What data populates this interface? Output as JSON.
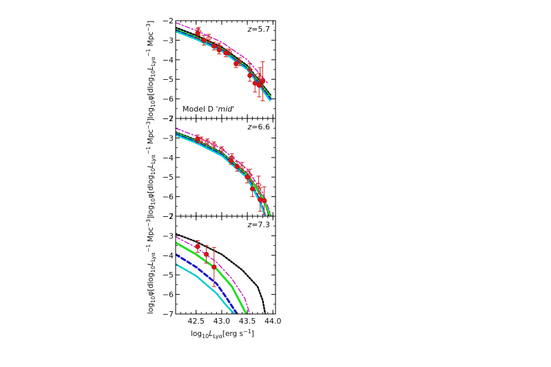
{
  "figure": {
    "xlabel": "log10Lya[erg s-1]",
    "xlabel_parts": {
      "main": "log",
      "sub1": "10",
      "mid": "L",
      "sub2": "Lyα",
      "tail": "[erg s",
      "sup": "−1",
      "end": "]"
    },
    "ylabel_parts": {
      "a": "log",
      "b": "10",
      "c": "φ[dlog",
      "d": "10",
      "e": "L",
      "f": "Lyα",
      "g": " Mpc",
      "h": "−3",
      "i": "]",
      "supm1": "−1"
    },
    "model_label_prefix": "Model D ",
    "model_label_italic": "'mid'"
  },
  "chart_data": [
    {
      "type": "line",
      "panel": "top",
      "annotation": "z=5.7",
      "xlim": [
        42.1,
        44.05
      ],
      "ylim": [
        -7,
        -2
      ],
      "xticks": [
        42.5,
        43.0,
        43.5,
        44.0
      ],
      "yticks": [
        -2,
        -3,
        -4,
        -5,
        -6,
        -7
      ],
      "series": [
        {
          "style": "dash-dot-purple",
          "color": "#c000c0",
          "x": [
            42.1,
            42.5,
            43.0,
            43.5,
            43.9
          ],
          "y": [
            -2.1,
            -2.5,
            -3.1,
            -4.0,
            -5.2
          ]
        },
        {
          "style": "dotted-black",
          "color": "#000000",
          "x": [
            42.1,
            42.5,
            43.0,
            43.5,
            43.95
          ],
          "y": [
            -2.35,
            -2.75,
            -3.35,
            -4.3,
            -5.8
          ]
        },
        {
          "style": "solid-green",
          "color": "#22dd22",
          "x": [
            42.1,
            42.5,
            43.0,
            43.5,
            43.95
          ],
          "y": [
            -2.45,
            -2.85,
            -3.45,
            -4.4,
            -5.9
          ]
        },
        {
          "style": "dashed-blue",
          "color": "#1010cc",
          "x": [
            42.1,
            42.5,
            43.0,
            43.5,
            43.95
          ],
          "y": [
            -2.5,
            -2.9,
            -3.5,
            -4.45,
            -6.0
          ]
        },
        {
          "style": "dotdash-cyan",
          "color": "#00cccc",
          "x": [
            42.1,
            42.5,
            43.0,
            43.5,
            43.95
          ],
          "y": [
            -2.55,
            -2.95,
            -3.55,
            -4.5,
            -6.1
          ]
        }
      ],
      "points_filled": [
        {
          "x": 42.53,
          "y": -2.65,
          "err": 0.25
        },
        {
          "x": 42.65,
          "y": -3.0,
          "err": 0.25
        },
        {
          "x": 42.85,
          "y": -3.3,
          "err": 0.2
        },
        {
          "x": 42.95,
          "y": -3.5,
          "err": 0.2
        },
        {
          "x": 43.08,
          "y": -3.65,
          "err": 0.2
        },
        {
          "x": 43.28,
          "y": -4.2,
          "err": 0.2
        },
        {
          "x": 43.55,
          "y": -4.8,
          "err": 0.3
        },
        {
          "x": 43.65,
          "y": -5.2,
          "err": 0.45
        },
        {
          "x": 43.73,
          "y": -5.3,
          "err": 0.6
        },
        {
          "x": 43.8,
          "y": -5.1,
          "err": 1.0
        }
      ],
      "points_open": [
        {
          "x": 42.55,
          "y": -2.55,
          "err": 0.2
        },
        {
          "x": 42.75,
          "y": -2.9,
          "err": 0.2
        },
        {
          "x": 42.95,
          "y": -3.3,
          "err": 0.15
        },
        {
          "x": 43.15,
          "y": -3.6,
          "err": 0.15
        },
        {
          "x": 43.35,
          "y": -4.1,
          "err": 0.2
        },
        {
          "x": 43.55,
          "y": -4.5,
          "err": 0.3
        },
        {
          "x": 43.75,
          "y": -4.9,
          "err": 0.5
        }
      ]
    },
    {
      "type": "line",
      "panel": "middle",
      "annotation": "z=6.6",
      "xlim": [
        42.1,
        44.05
      ],
      "ylim": [
        -7,
        -2
      ],
      "xticks": [
        42.5,
        43.0,
        43.5,
        44.0
      ],
      "yticks": [
        -2,
        -3,
        -4,
        -5,
        -6,
        -7
      ],
      "series": [
        {
          "style": "dash-dot-purple",
          "color": "#c000c0",
          "x": [
            42.1,
            42.5,
            43.0,
            43.5,
            43.8,
            43.97
          ],
          "y": [
            -2.5,
            -2.9,
            -3.55,
            -4.6,
            -5.8,
            -7.0
          ]
        },
        {
          "style": "dotted-black",
          "color": "#000000",
          "x": [
            42.1,
            42.5,
            43.0,
            43.5,
            43.8,
            43.93
          ],
          "y": [
            -2.7,
            -3.1,
            -3.75,
            -4.85,
            -6.0,
            -7.0
          ]
        },
        {
          "style": "solid-green",
          "color": "#22dd22",
          "x": [
            42.1,
            42.5,
            43.0,
            43.5,
            43.8,
            43.95
          ],
          "y": [
            -2.75,
            -3.15,
            -3.8,
            -4.9,
            -6.05,
            -7.0
          ]
        },
        {
          "style": "dashed-blue",
          "color": "#1010cc",
          "x": [
            42.1,
            42.5,
            43.0,
            43.5,
            43.75,
            43.85
          ],
          "y": [
            -2.8,
            -3.2,
            -3.85,
            -5.0,
            -6.2,
            -7.0
          ]
        },
        {
          "style": "dotdash-cyan",
          "color": "#00cccc",
          "x": [
            42.1,
            42.5,
            43.0,
            43.5,
            43.75,
            43.85
          ],
          "y": [
            -2.85,
            -3.25,
            -3.9,
            -5.05,
            -6.3,
            -7.0
          ]
        }
      ],
      "points_filled": [
        {
          "x": 42.53,
          "y": -3.05,
          "err": 0.2
        },
        {
          "x": 43.18,
          "y": -4.15,
          "err": 0.2
        },
        {
          "x": 43.3,
          "y": -4.45,
          "err": 0.25
        },
        {
          "x": 43.5,
          "y": -5.0,
          "err": 0.3
        },
        {
          "x": 43.6,
          "y": -5.6,
          "err": 0.4
        },
        {
          "x": 43.75,
          "y": -6.15,
          "err": 0.6
        },
        {
          "x": 43.83,
          "y": -6.2,
          "err": 0.7
        }
      ],
      "points_open": [
        {
          "x": 42.6,
          "y": -3.1,
          "err": 0.15
        },
        {
          "x": 42.72,
          "y": -3.2,
          "err": 0.15
        },
        {
          "x": 42.85,
          "y": -3.35,
          "err": 0.15
        },
        {
          "x": 43.0,
          "y": -3.6,
          "err": 0.15
        },
        {
          "x": 43.2,
          "y": -4.0,
          "err": 0.2
        },
        {
          "x": 43.4,
          "y": -4.5,
          "err": 0.25
        },
        {
          "x": 43.55,
          "y": -4.9,
          "err": 0.3
        },
        {
          "x": 43.72,
          "y": -5.4,
          "err": 0.45
        }
      ]
    },
    {
      "type": "line",
      "panel": "bottom",
      "annotation": "z=7.3",
      "xlim": [
        42.1,
        44.05
      ],
      "ylim": [
        -7,
        -2
      ],
      "xticks": [
        42.5,
        43.0,
        43.5,
        44.0
      ],
      "yticks": [
        -2,
        -3,
        -4,
        -5,
        -6,
        -7
      ],
      "xticklabels": [
        "42.5",
        "43.0",
        "43.5",
        "44.0"
      ],
      "series": [
        {
          "style": "dotted-black",
          "color": "#000000",
          "x": [
            42.1,
            42.5,
            43.0,
            43.4,
            43.7,
            43.8,
            43.85
          ],
          "y": [
            -2.9,
            -3.3,
            -3.95,
            -4.75,
            -5.6,
            -6.3,
            -7.0
          ]
        },
        {
          "style": "dash-dot-purple",
          "color": "#c000c0",
          "x": [
            42.1,
            42.5,
            42.9,
            43.2,
            43.45,
            43.55
          ],
          "y": [
            -3.05,
            -3.6,
            -4.35,
            -5.2,
            -6.2,
            -7.0
          ]
        },
        {
          "style": "solid-green",
          "color": "#22dd22",
          "x": [
            42.1,
            42.5,
            42.9,
            43.2,
            43.4,
            43.48
          ],
          "y": [
            -3.35,
            -3.95,
            -4.7,
            -5.6,
            -6.6,
            -7.0
          ]
        },
        {
          "style": "dashed-blue",
          "color": "#1010cc",
          "x": [
            42.1,
            42.5,
            42.9,
            43.1,
            43.3
          ],
          "y": [
            -3.95,
            -4.6,
            -5.45,
            -6.2,
            -7.0
          ]
        },
        {
          "style": "dotdash-cyan",
          "color": "#00cccc",
          "x": [
            42.1,
            42.5,
            42.9,
            43.1,
            43.25
          ],
          "y": [
            -4.45,
            -5.05,
            -5.95,
            -6.6,
            -7.0
          ]
        }
      ],
      "points_filled": [
        {
          "x": 42.53,
          "y": -3.55,
          "err": 0.3
        },
        {
          "x": 42.7,
          "y": -3.95,
          "err": 0.45
        },
        {
          "x": 42.85,
          "y": -4.6,
          "err": 1.0
        }
      ],
      "points_open": []
    }
  ]
}
